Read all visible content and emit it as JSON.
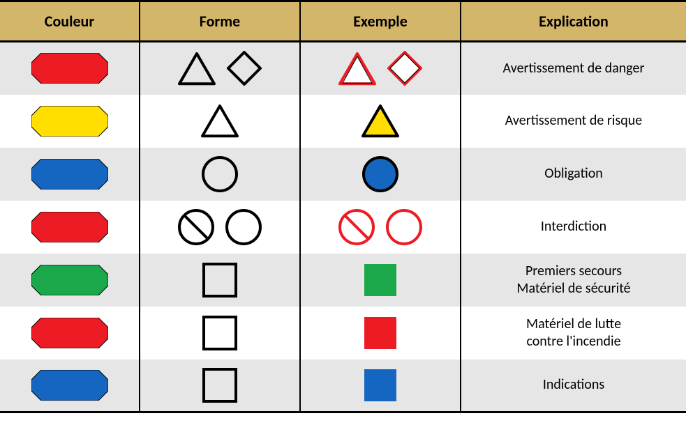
{
  "headers": {
    "couleur": "Couleur",
    "forme": "Forme",
    "exemple": "Exemple",
    "explication": "Explication"
  },
  "colors": {
    "header_bg": "#d4b66a",
    "row_odd": "#e6e6e6",
    "row_even": "#ffffff",
    "border": "#000000",
    "red": "#ed1c24",
    "yellow": "#ffde00",
    "blue": "#1566c0",
    "green": "#1ba84a",
    "black": "#000000",
    "white": "#ffffff"
  },
  "font": {
    "header_size": 22,
    "body_size": 20,
    "weight_header": "bold",
    "weight_body": "normal"
  },
  "rows": [
    {
      "couleur": {
        "type": "octagon",
        "fill": "#ed1c24"
      },
      "forme": [
        {
          "type": "triangle",
          "stroke": "#000000",
          "fill": "none"
        },
        {
          "type": "diamond",
          "stroke": "#000000",
          "fill": "none"
        }
      ],
      "exemple": [
        {
          "type": "triangle",
          "stroke": "#ed1c24",
          "fill": "#ffffff",
          "inner_stroke": "#000000"
        },
        {
          "type": "diamond",
          "stroke": "#ed1c24",
          "fill": "#ffffff",
          "inner_stroke": "#000000"
        }
      ],
      "explication": "Avertissement de danger"
    },
    {
      "couleur": {
        "type": "octagon",
        "fill": "#ffde00"
      },
      "forme": [
        {
          "type": "triangle",
          "stroke": "#000000",
          "fill": "none"
        }
      ],
      "exemple": [
        {
          "type": "triangle",
          "stroke": "#000000",
          "fill": "#ffde00"
        }
      ],
      "explication": "Avertissement de risque"
    },
    {
      "couleur": {
        "type": "octagon",
        "fill": "#1566c0"
      },
      "forme": [
        {
          "type": "circle",
          "stroke": "#000000",
          "fill": "none"
        }
      ],
      "exemple": [
        {
          "type": "circle",
          "stroke": "#000000",
          "fill": "#1566c0"
        }
      ],
      "explication": "Obligation"
    },
    {
      "couleur": {
        "type": "octagon",
        "fill": "#ed1c24"
      },
      "forme": [
        {
          "type": "prohibit",
          "stroke": "#000000",
          "fill": "none"
        },
        {
          "type": "circle",
          "stroke": "#000000",
          "fill": "none"
        }
      ],
      "exemple": [
        {
          "type": "prohibit",
          "stroke": "#ed1c24",
          "fill": "#ffffff"
        },
        {
          "type": "circle",
          "stroke": "#ed1c24",
          "fill": "#ffffff"
        }
      ],
      "explication": "Interdiction"
    },
    {
      "couleur": {
        "type": "octagon",
        "fill": "#1ba84a"
      },
      "forme": [
        {
          "type": "square",
          "stroke": "#000000",
          "fill": "none"
        }
      ],
      "exemple": [
        {
          "type": "square",
          "stroke": "none",
          "fill": "#1ba84a"
        }
      ],
      "explication": "Premiers secours\nMatériel de sécurité"
    },
    {
      "couleur": {
        "type": "octagon",
        "fill": "#ed1c24"
      },
      "forme": [
        {
          "type": "square",
          "stroke": "#000000",
          "fill": "none"
        }
      ],
      "exemple": [
        {
          "type": "square",
          "stroke": "none",
          "fill": "#ed1c24"
        }
      ],
      "explication": "Matériel de lutte\ncontre l'incendie"
    },
    {
      "couleur": {
        "type": "octagon",
        "fill": "#1566c0"
      },
      "forme": [
        {
          "type": "square",
          "stroke": "#000000",
          "fill": "none"
        }
      ],
      "exemple": [
        {
          "type": "square",
          "stroke": "none",
          "fill": "#1566c0"
        }
      ],
      "explication": "Indications"
    }
  ],
  "shape_sizes": {
    "octagon": {
      "w": 110,
      "h": 44,
      "cut": 14
    },
    "triangle": {
      "s": 50,
      "sw": 4
    },
    "diamond": {
      "s": 46,
      "sw": 4
    },
    "circle": {
      "r": 24,
      "sw": 4
    },
    "square": {
      "s": 46,
      "sw": 4
    },
    "prohibit": {
      "r": 24,
      "sw": 4
    }
  }
}
